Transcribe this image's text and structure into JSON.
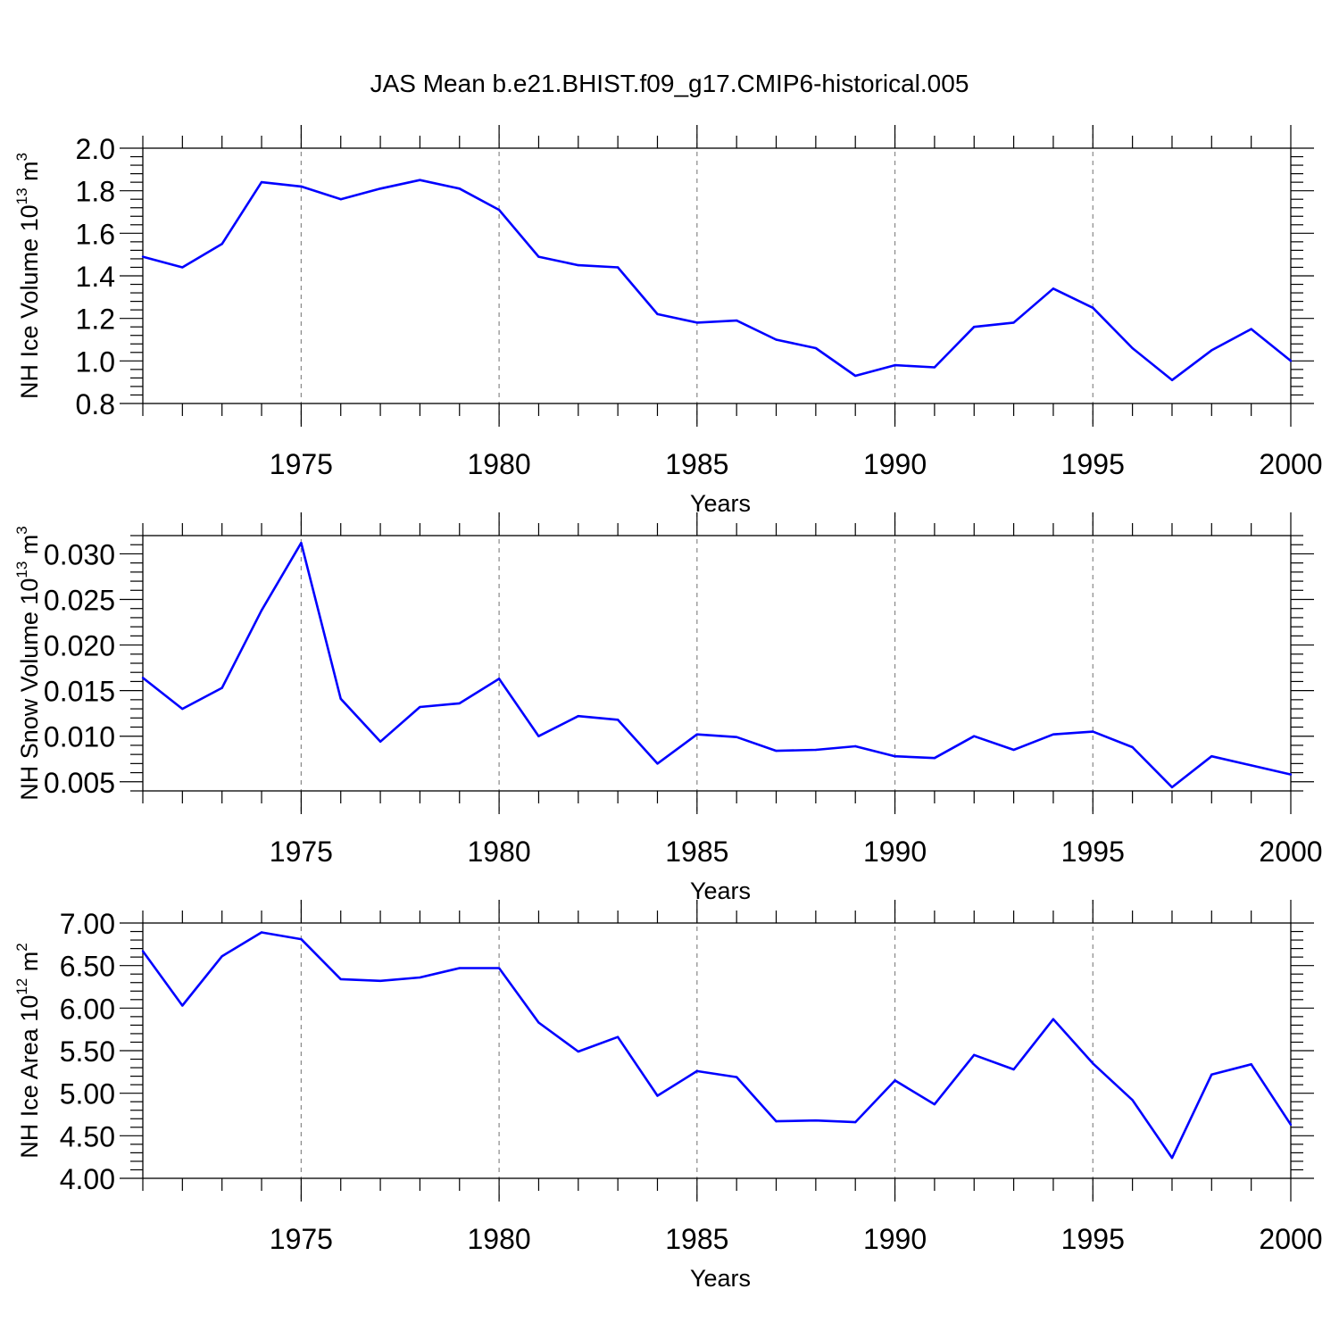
{
  "figure": {
    "title": "JAS Mean b.e21.BHIST.f09_g17.CMIP6-historical.005",
    "line_color": "#0000ff",
    "grid_color": "#888888"
  },
  "chart_data": [
    {
      "type": "line",
      "title": "",
      "xlabel": "Years",
      "ylabel": "NH Ice Volume 10",
      "ylabel_sup": "13",
      "ylabel_unit": "m",
      "ylabel_unit_sup": "3",
      "xlim": [
        1971,
        2000
      ],
      "ylim": [
        0.8,
        2.0
      ],
      "x_ticks": [
        1975,
        1980,
        1985,
        1990,
        1995,
        2000
      ],
      "y_ticks": [
        0.8,
        1.0,
        1.2,
        1.4,
        1.6,
        1.8,
        2.0
      ],
      "y_decimals": 1,
      "x_grid": true,
      "x": [
        1971,
        1972,
        1973,
        1974,
        1975,
        1976,
        1977,
        1978,
        1979,
        1980,
        1981,
        1982,
        1983,
        1984,
        1985,
        1986,
        1987,
        1988,
        1989,
        1990,
        1991,
        1992,
        1993,
        1994,
        1995,
        1996,
        1997,
        1998,
        1999,
        2000
      ],
      "series": [
        {
          "values": [
            1.49,
            1.44,
            1.55,
            1.84,
            1.82,
            1.76,
            1.81,
            1.85,
            1.81,
            1.71,
            1.49,
            1.45,
            1.44,
            1.22,
            1.18,
            1.19,
            1.1,
            1.06,
            0.93,
            0.98,
            0.97,
            1.16,
            1.18,
            1.34,
            1.25,
            1.06,
            0.91,
            1.05,
            1.15,
            1.0
          ]
        }
      ]
    },
    {
      "type": "line",
      "title": "",
      "xlabel": "Years",
      "ylabel": "NH Snow Volume 10",
      "ylabel_sup": "13",
      "ylabel_unit": "m",
      "ylabel_unit_sup": "3",
      "xlim": [
        1971,
        2000
      ],
      "ylim": [
        0.004,
        0.032
      ],
      "x_ticks": [
        1975,
        1980,
        1985,
        1990,
        1995,
        2000
      ],
      "y_ticks": [
        0.005,
        0.01,
        0.015,
        0.02,
        0.025,
        0.03
      ],
      "y_decimals": 3,
      "x_grid": true,
      "x": [
        1971,
        1972,
        1973,
        1974,
        1975,
        1976,
        1977,
        1978,
        1979,
        1980,
        1981,
        1982,
        1983,
        1984,
        1985,
        1986,
        1987,
        1988,
        1989,
        1990,
        1991,
        1992,
        1993,
        1994,
        1995,
        1996,
        1997,
        1998,
        1999,
        2000
      ],
      "series": [
        {
          "values": [
            0.0164,
            0.013,
            0.0153,
            0.0238,
            0.0312,
            0.0141,
            0.0094,
            0.0132,
            0.0136,
            0.0163,
            0.01,
            0.0122,
            0.0118,
            0.007,
            0.0102,
            0.0099,
            0.0084,
            0.0085,
            0.0089,
            0.0078,
            0.0076,
            0.01,
            0.0085,
            0.0102,
            0.0105,
            0.0088,
            0.0044,
            0.0078,
            0.0068,
            0.0058
          ]
        }
      ]
    },
    {
      "type": "line",
      "title": "",
      "xlabel": "Years",
      "ylabel": "NH Ice Area 10",
      "ylabel_sup": "12",
      "ylabel_unit": "m",
      "ylabel_unit_sup": "2",
      "xlim": [
        1971,
        2000
      ],
      "ylim": [
        4.0,
        7.0
      ],
      "x_ticks": [
        1975,
        1980,
        1985,
        1990,
        1995,
        2000
      ],
      "y_ticks": [
        4.0,
        4.5,
        5.0,
        5.5,
        6.0,
        6.5,
        7.0
      ],
      "y_decimals": 2,
      "x_grid": true,
      "x": [
        1971,
        1972,
        1973,
        1974,
        1975,
        1976,
        1977,
        1978,
        1979,
        1980,
        1981,
        1982,
        1983,
        1984,
        1985,
        1986,
        1987,
        1988,
        1989,
        1990,
        1991,
        1992,
        1993,
        1994,
        1995,
        1996,
        1997,
        1998,
        1999,
        2000
      ],
      "series": [
        {
          "values": [
            6.67,
            6.03,
            6.61,
            6.89,
            6.81,
            6.34,
            6.32,
            6.36,
            6.47,
            6.47,
            5.83,
            5.49,
            5.66,
            4.97,
            5.26,
            5.19,
            4.67,
            4.68,
            4.66,
            5.15,
            4.87,
            5.45,
            5.28,
            5.87,
            5.35,
            4.92,
            4.24,
            5.22,
            5.34,
            4.63
          ]
        }
      ]
    }
  ]
}
